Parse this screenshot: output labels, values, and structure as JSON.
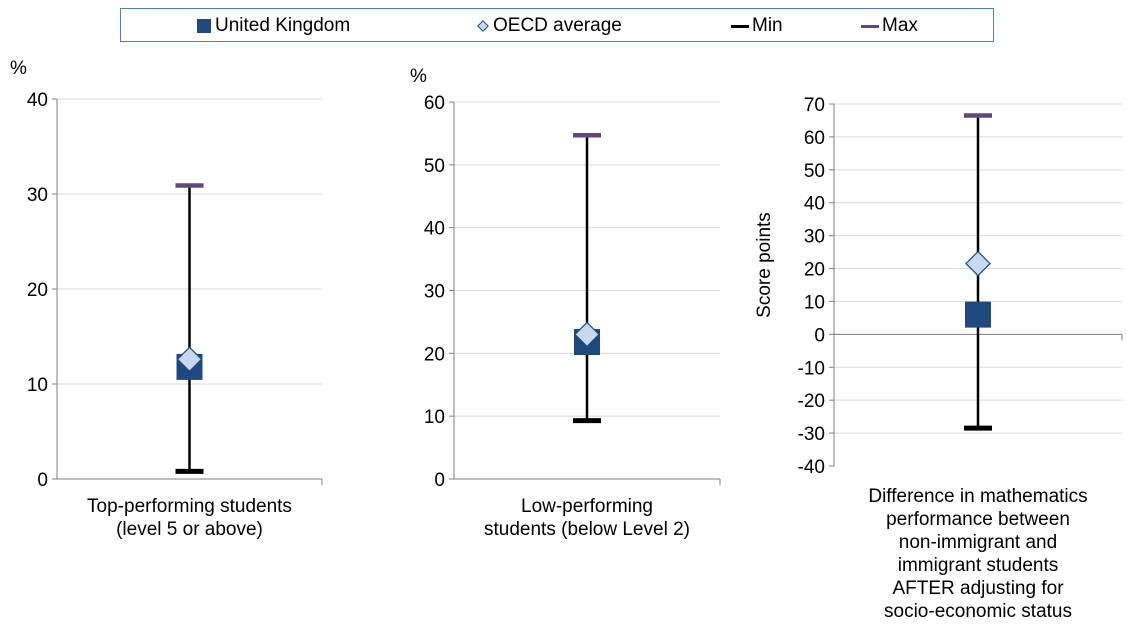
{
  "legend": {
    "items": [
      {
        "label": "United Kingdom",
        "marker": "square",
        "color": "#1f497d"
      },
      {
        "label": "OECD average",
        "marker": "diamond",
        "color": "#c6d9f1"
      },
      {
        "label": "Min",
        "marker": "dash",
        "color": "#000000"
      },
      {
        "label": "Max",
        "marker": "dash",
        "color": "#5f497a"
      }
    ]
  },
  "colors": {
    "uk": "#1f497d",
    "oecd_fill": "#c6d9f1",
    "oecd_stroke": "#1f497d",
    "min": "#000000",
    "max": "#5f497a",
    "axis": "#808080",
    "grid": "#d9d9d9",
    "whisker": "#000000"
  },
  "chart_data": [
    {
      "type": "scatter",
      "y_unit_label": "%",
      "ylabel": "",
      "ylim": [
        0,
        40
      ],
      "ytick_step": 10,
      "yticks": [
        "0",
        "10",
        "20",
        "30",
        "40"
      ],
      "grid": true,
      "category_label_lines": [
        "Top-performing students",
        "(level 5 or above)"
      ],
      "series": [
        {
          "name": "United Kingdom",
          "value": 11.8
        },
        {
          "name": "OECD average",
          "value": 12.6
        },
        {
          "name": "Min",
          "value": 0.8
        },
        {
          "name": "Max",
          "value": 30.9
        }
      ]
    },
    {
      "type": "scatter",
      "y_unit_label": "%",
      "ylabel": "",
      "ylim": [
        0,
        60
      ],
      "ytick_step": 10,
      "yticks": [
        "0",
        "10",
        "20",
        "30",
        "40",
        "50",
        "60"
      ],
      "grid": true,
      "category_label_lines": [
        "Low-performing",
        "students (below Level 2)"
      ],
      "series": [
        {
          "name": "United Kingdom",
          "value": 21.8
        },
        {
          "name": "OECD average",
          "value": 23.0
        },
        {
          "name": "Min",
          "value": 9.3
        },
        {
          "name": "Max",
          "value": 54.7
        }
      ]
    },
    {
      "type": "scatter",
      "y_unit_label": "",
      "ylabel": "Score points",
      "ylim": [
        -40,
        70
      ],
      "ytick_step": 10,
      "yticks": [
        "-40",
        "-30",
        "-20",
        "-10",
        "0",
        "10",
        "20",
        "30",
        "40",
        "50",
        "60",
        "70"
      ],
      "grid": true,
      "category_label_lines": [
        "Difference in mathematics",
        "performance between",
        "non-immigrant and",
        "immigrant students",
        "AFTER adjusting for",
        "socio-economic status"
      ],
      "series": [
        {
          "name": "United Kingdom",
          "value": 6
        },
        {
          "name": "OECD average",
          "value": 21.5
        },
        {
          "name": "Min",
          "value": -28.5
        },
        {
          "name": "Max",
          "value": 66.5
        }
      ]
    }
  ]
}
